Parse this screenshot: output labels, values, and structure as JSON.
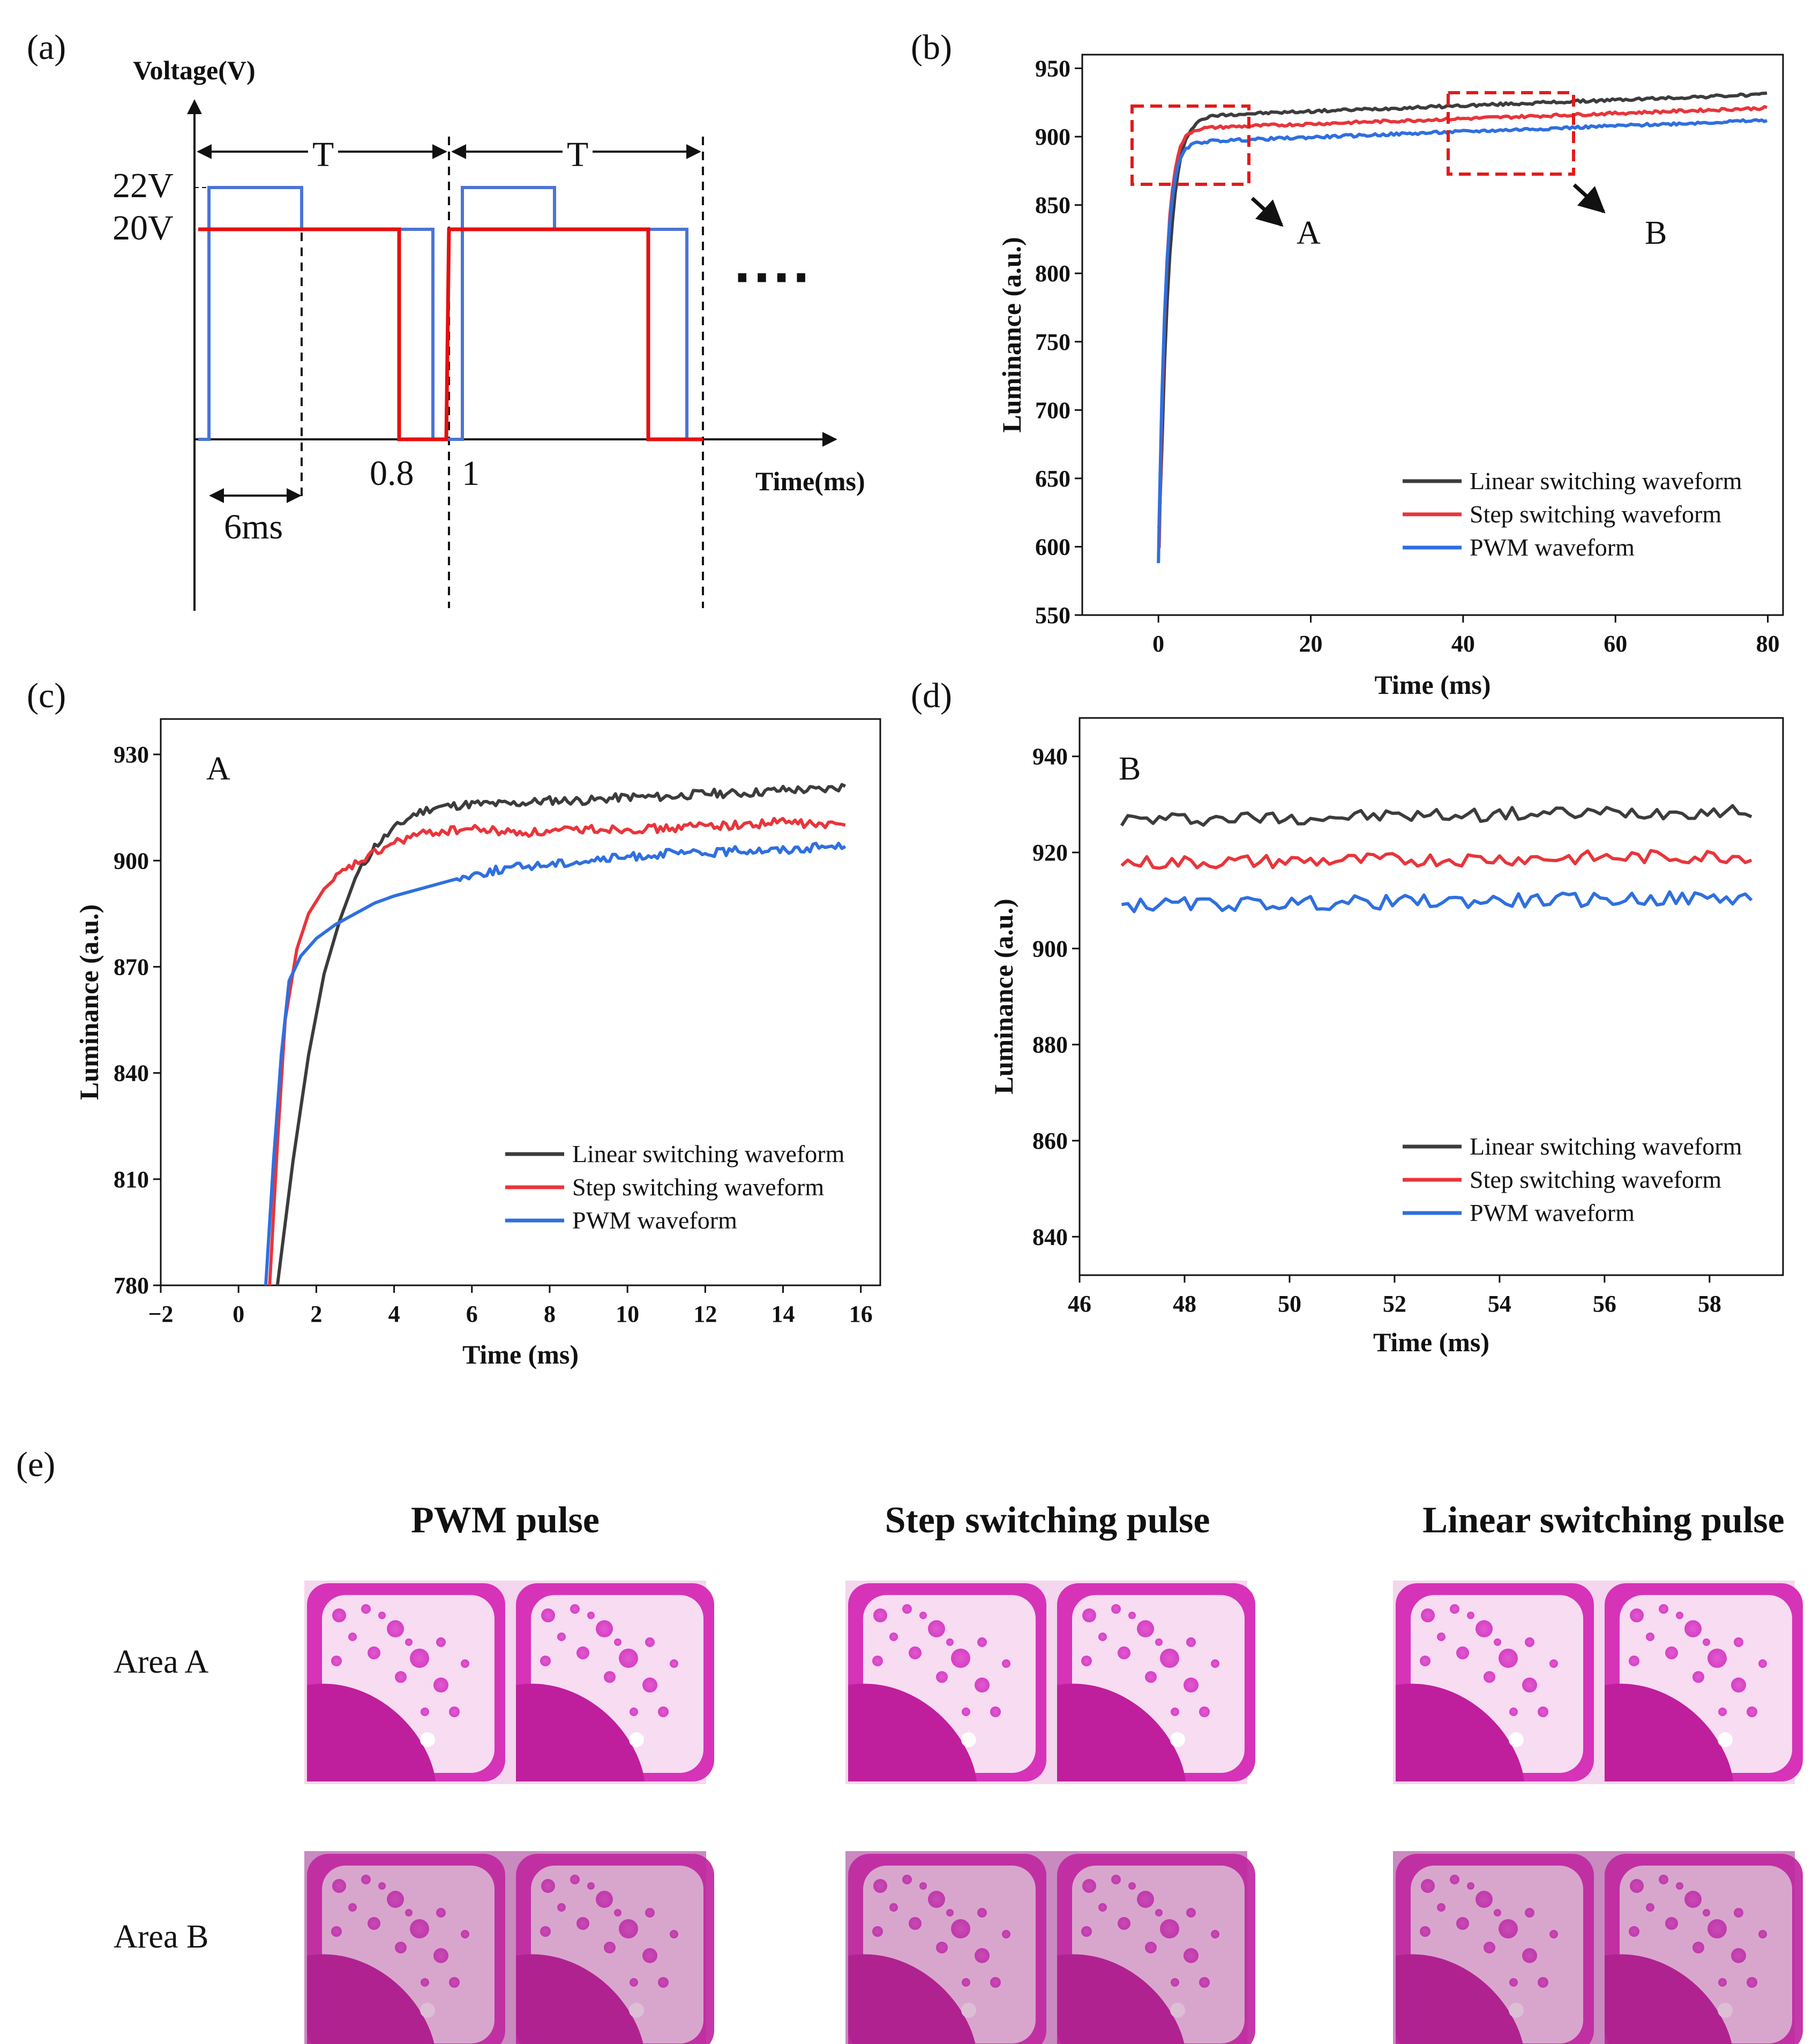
{
  "colors": {
    "linear": "#3c3c3c",
    "step": "#e8353b",
    "pwm": "#2f6fe0",
    "red_box": "#e21b1b",
    "red_wave": "#e60f0f",
    "blue_wave": "#4b74d4"
  },
  "panel_a": {
    "label": "(a)",
    "y_title": "Voltage(V)",
    "x_title": "Time(ms)",
    "v22": "22V",
    "v20": "20V",
    "period": "T",
    "t_08": "0.8",
    "t_1": "1",
    "width_label": "6ms",
    "dots": "····"
  },
  "panel_b": {
    "label": "(b)",
    "box_a": "A",
    "box_b": "B"
  },
  "panel_c": {
    "label": "(c)",
    "inset": "A"
  },
  "panel_d": {
    "label": "(d)",
    "inset": "B"
  },
  "chart_data": [
    {
      "id": "b",
      "type": "line",
      "xlabel": "Time (ms)",
      "ylabel": "Luminance (a.u.)",
      "xlim": [
        -10,
        82
      ],
      "ylim": [
        550,
        960
      ],
      "xticks": [
        0,
        20,
        40,
        60,
        80
      ],
      "yticks": [
        550,
        600,
        650,
        700,
        750,
        800,
        850,
        900,
        950
      ],
      "legend_pos": "bottom-right",
      "series": [
        {
          "name": "Linear switching waveform",
          "key": "linear",
          "start": 615,
          "rise_at": 0.2,
          "tau": 1.2,
          "plateau": 915,
          "slope": 0.2,
          "end": 931
        },
        {
          "name": "Step switching waveform",
          "key": "step",
          "start": 600,
          "rise_at": 0.1,
          "tau": 0.9,
          "plateau": 906,
          "slope": 0.18,
          "end": 921
        },
        {
          "name": "PWM waveform",
          "key": "pwm",
          "start": 588,
          "rise_at": 0.0,
          "tau": 0.9,
          "plateau": 896,
          "slope": 0.2,
          "end": 912
        }
      ]
    },
    {
      "id": "c",
      "type": "line",
      "xlabel": "Time (ms)",
      "ylabel": "Luminance (a.u.)",
      "xlim": [
        -2,
        16.5
      ],
      "ylim": [
        780,
        940
      ],
      "xticks": [
        -2,
        0,
        2,
        4,
        6,
        8,
        10,
        12,
        14,
        16
      ],
      "yticks": [
        780,
        810,
        840,
        870,
        900,
        930
      ],
      "legend_pos": "bottom-right",
      "series": [
        {
          "name": "Linear switching waveform",
          "key": "linear",
          "x": [
            1.0,
            1.4,
            1.8,
            2.2,
            2.6,
            3.0,
            3.5,
            4.0,
            4.5,
            5.0,
            6.0,
            7.0,
            8.0,
            9.0,
            10.0,
            11.0,
            12.0,
            13.0,
            14.0,
            15.0,
            15.6
          ],
          "y": [
            780,
            815,
            845,
            868,
            883,
            895,
            904,
            909,
            913,
            915,
            916,
            916,
            917,
            917,
            918,
            918,
            919,
            919,
            920,
            920,
            921
          ]
        },
        {
          "name": "Step switching waveform",
          "key": "step",
          "x": [
            0.8,
            1.0,
            1.2,
            1.5,
            1.8,
            2.2,
            2.6,
            3.0,
            3.5,
            4.0,
            4.5,
            5.0,
            6.0,
            7.0,
            8.0,
            9.0,
            10.0,
            11.0,
            12.0,
            13.0,
            14.0,
            15.0,
            15.6
          ],
          "y": [
            780,
            820,
            855,
            875,
            885,
            892,
            896,
            899,
            902,
            905,
            907,
            908,
            909,
            908,
            908,
            909,
            909,
            909,
            910,
            910,
            911,
            910,
            910
          ]
        },
        {
          "name": "PWM waveform",
          "key": "pwm",
          "x": [
            0.7,
            0.9,
            1.1,
            1.3,
            1.6,
            2.0,
            2.5,
            3.0,
            3.5,
            4.0,
            5.0,
            6.0,
            7.0,
            8.0,
            9.0,
            10.0,
            11.0,
            12.0,
            13.0,
            14.0,
            15.0,
            15.6
          ],
          "y": [
            780,
            815,
            845,
            866,
            873,
            878,
            882,
            885,
            888,
            890,
            893,
            896,
            898,
            899,
            900,
            901,
            902,
            902,
            903,
            903,
            904,
            904
          ]
        }
      ]
    },
    {
      "id": "d",
      "type": "line",
      "xlabel": "Time (ms)",
      "ylabel": "Luminance (a.u.)",
      "xlim": [
        46,
        59.4
      ],
      "ylim": [
        832,
        948
      ],
      "xticks": [
        46,
        48,
        50,
        52,
        54,
        56,
        58
      ],
      "yticks": [
        840,
        860,
        880,
        900,
        920,
        940
      ],
      "legend_pos": "bottom-right",
      "series": [
        {
          "name": "Linear switching waveform",
          "key": "linear",
          "x_start": 46.8,
          "x_end": 58.9,
          "mean_start": 926.8,
          "mean_end": 928.7,
          "noise": 0.9
        },
        {
          "name": "Step switching waveform",
          "key": "step",
          "x_start": 46.8,
          "x_end": 58.9,
          "mean_start": 917.8,
          "mean_end": 919.3,
          "noise": 0.9
        },
        {
          "name": "PWM waveform",
          "key": "pwm",
          "x_start": 46.8,
          "x_end": 58.9,
          "mean_start": 909.0,
          "mean_end": 910.6,
          "noise": 0.9
        }
      ]
    }
  ],
  "panel_e": {
    "label": "(e)",
    "columns": [
      "PWM pulse",
      "Step switching pulse",
      "Linear switching pulse"
    ],
    "rows": [
      "Area A",
      "Area B"
    ]
  }
}
